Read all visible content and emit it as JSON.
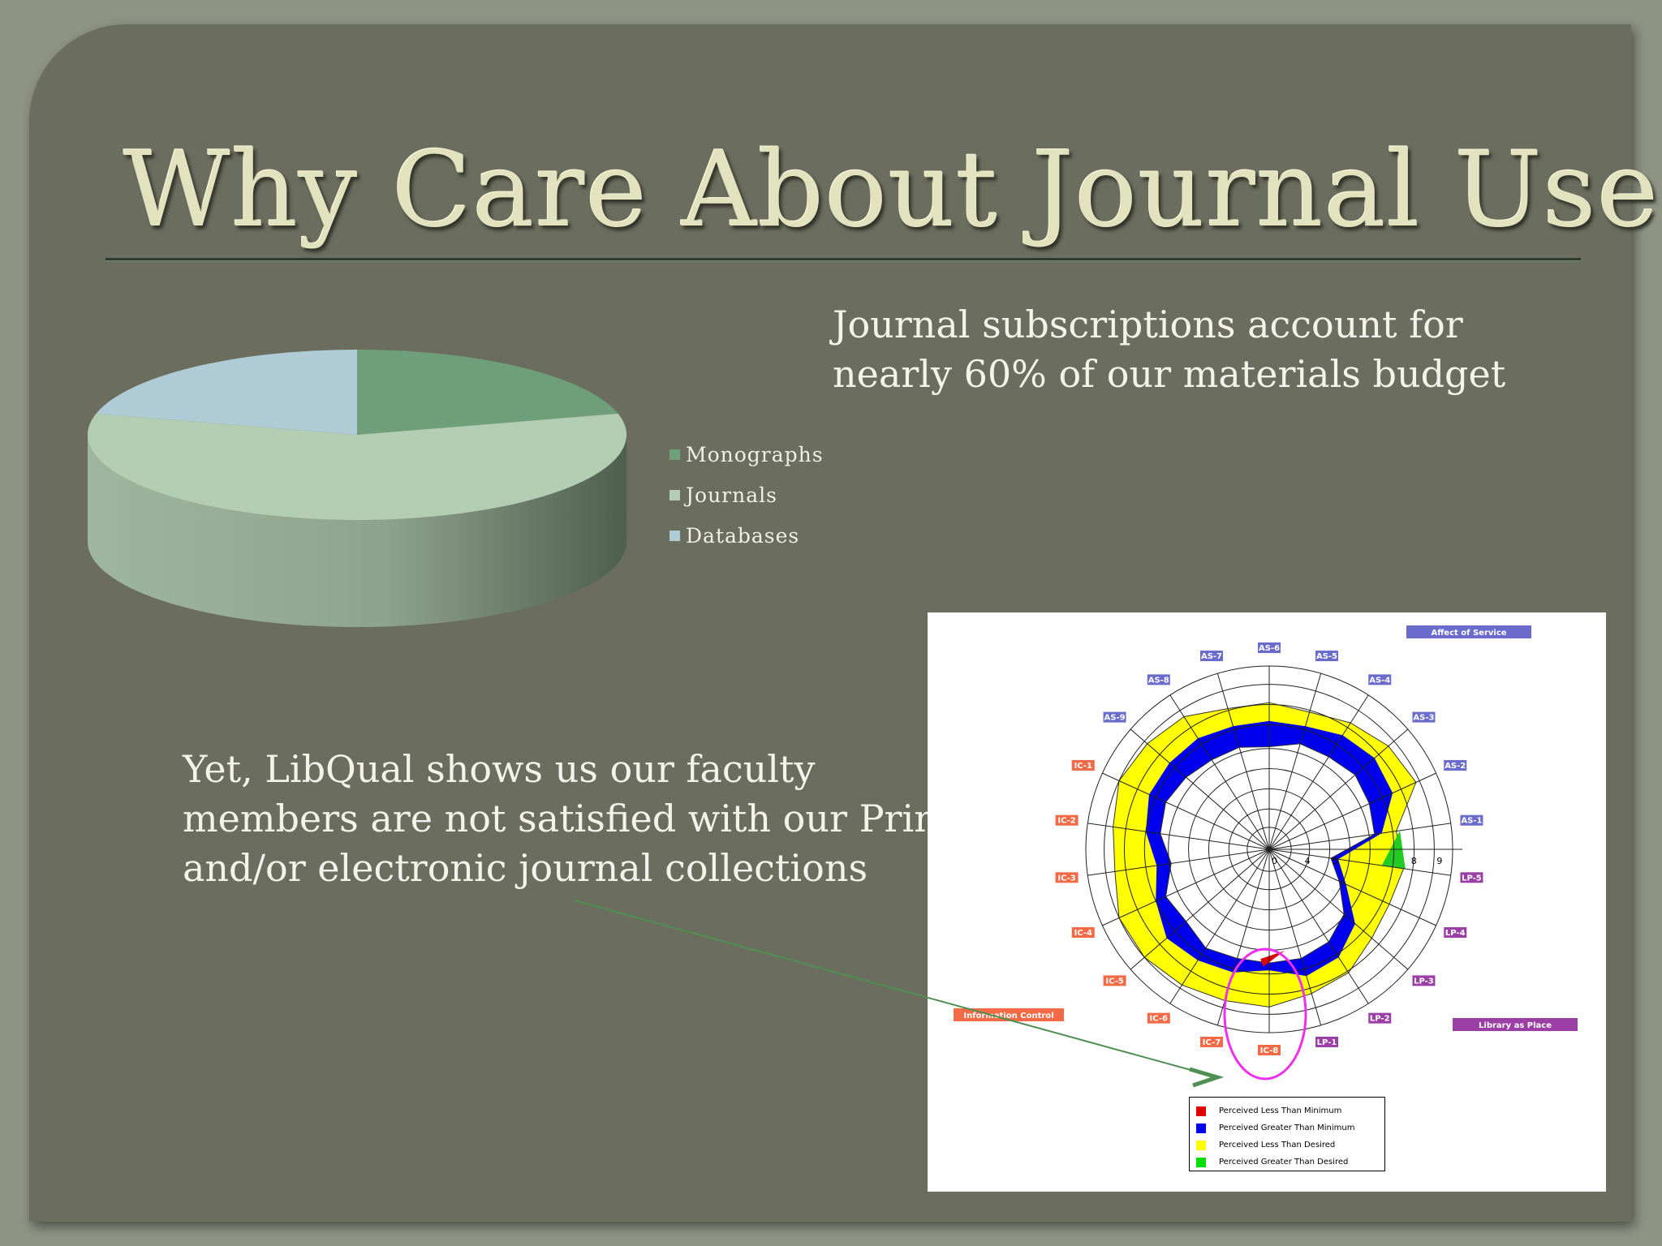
{
  "slide": {
    "title": "Why Care About Journal Use?",
    "budget_line1": "Journal subscriptions account for",
    "budget_line2": "nearly 60% of our materials budget",
    "libqual_line1": "Yet, LibQual shows us our faculty",
    "libqual_line2": "members are not satisfied with our Prin",
    "libqual_line3": "and/or electronic journal collections"
  },
  "chart_data": [
    {
      "type": "pie",
      "series": [
        {
          "name": "Monographs",
          "value": 21,
          "color": "#6f9f78"
        },
        {
          "name": "Journals",
          "value": 58,
          "color": "#b3cdb2"
        },
        {
          "name": "Databases",
          "value": 21,
          "color": "#afcbd6"
        }
      ]
    },
    {
      "type": "radar",
      "title_groups": [
        {
          "name": "Affect of Service",
          "color": "#6b6bcc"
        },
        {
          "name": "Information Control",
          "color": "#f26a46"
        },
        {
          "name": "Library as Place",
          "color": "#9b3fa6"
        }
      ],
      "axes": [
        "AS-1",
        "AS-2",
        "AS-3",
        "AS-4",
        "AS-5",
        "AS-6",
        "AS-7",
        "AS-8",
        "AS-9",
        "IC-1",
        "IC-2",
        "IC-3",
        "IC-4",
        "IC-5",
        "IC-6",
        "IC-7",
        "IC-8",
        "LP-1",
        "LP-2",
        "LP-3",
        "LP-4",
        "LP-5"
      ],
      "scale_labels": [
        "0",
        "4",
        "5",
        "8",
        "9"
      ],
      "legend": [
        {
          "label": "Perceived Less Than Minimum",
          "color": "#e00000"
        },
        {
          "label": "Perceived Greater Than Minimum",
          "color": "#0000ee"
        },
        {
          "label": "Perceived Less Than Desired",
          "color": "#ffff00"
        },
        {
          "label": "Perceived Greater Than Desired",
          "color": "#00dd00"
        }
      ]
    }
  ]
}
